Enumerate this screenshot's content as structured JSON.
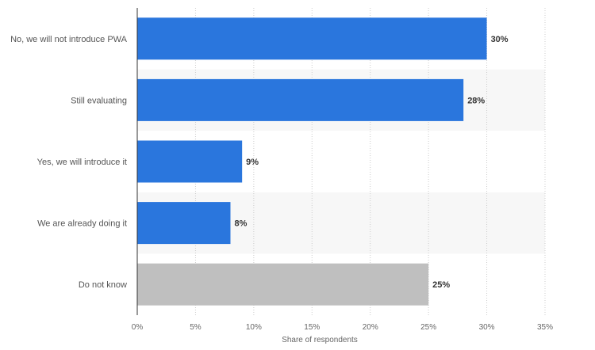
{
  "chart_data": {
    "type": "bar",
    "orientation": "horizontal",
    "categories": [
      "No, we will not introduce PWA",
      "Still evaluating",
      "Yes, we will introduce it",
      "We are already doing it",
      "Do not know"
    ],
    "values": [
      30,
      28,
      9,
      8,
      25
    ],
    "value_labels": [
      "30%",
      "28%",
      "9%",
      "8%",
      "25%"
    ],
    "bar_colors": [
      "#2a76dd",
      "#2a76dd",
      "#2a76dd",
      "#2a76dd",
      "#bfbfbf"
    ],
    "xlabel": "Share of respondents",
    "xlim": [
      0,
      35
    ],
    "x_ticks": [
      0,
      5,
      10,
      15,
      20,
      25,
      30,
      35
    ],
    "x_tick_labels": [
      "0%",
      "5%",
      "10%",
      "15%",
      "20%",
      "25%",
      "30%",
      "35%"
    ],
    "grid": true,
    "alternating_row_bands": true
  },
  "colors": {
    "accent": "#2a76dd",
    "neutral": "#bfbfbf",
    "band": "#f7f7f7",
    "grid": "#cccccc",
    "axis": "#333333"
  }
}
